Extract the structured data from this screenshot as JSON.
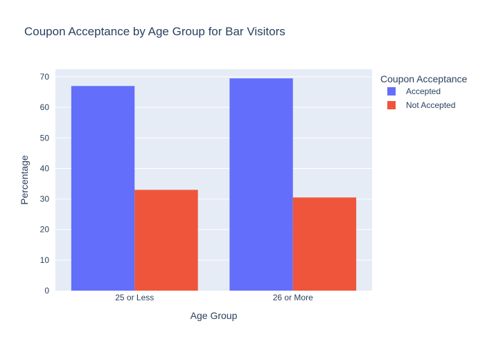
{
  "chart_data": {
    "type": "bar",
    "title": "Coupon Acceptance by Age Group for Bar Visitors",
    "xlabel": "Age Group",
    "ylabel": "Percentage",
    "categories": [
      "25 or Less",
      "26 or More"
    ],
    "series": [
      {
        "name": "Accepted",
        "values": [
          67.0,
          69.5
        ],
        "color": "#636efa"
      },
      {
        "name": "Not Accepted",
        "values": [
          33.0,
          30.5
        ],
        "color": "#ef553b"
      }
    ],
    "ylim": [
      0,
      72.5
    ],
    "yticks": [
      0,
      10,
      20,
      30,
      40,
      50,
      60,
      70
    ],
    "grid": true,
    "legend_title": "Coupon Acceptance",
    "legend_position": "top-right",
    "plot_background": "#e5ecf6",
    "text_color": "#2a3f5f"
  }
}
